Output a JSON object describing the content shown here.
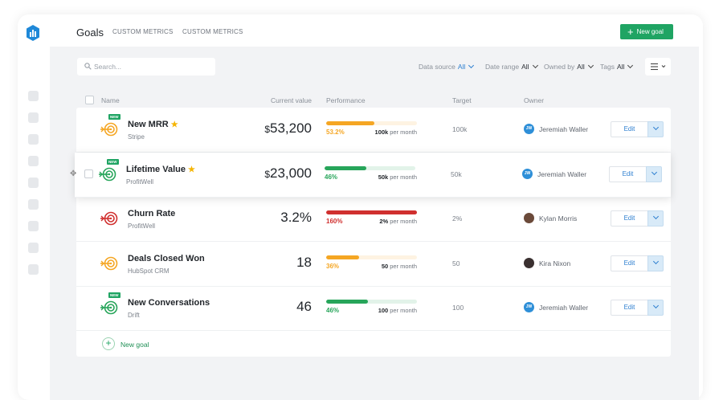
{
  "header": {
    "title": "Goals",
    "tabs": [
      "CUSTOM METRICS",
      "CUSTOM METRICS"
    ],
    "new_goal": "New goal"
  },
  "search": {
    "placeholder": "Search..."
  },
  "filters": [
    {
      "label": "Data source",
      "value": "All"
    },
    {
      "label": "Date range",
      "value": "All"
    },
    {
      "label": "Owned by",
      "value": "All"
    },
    {
      "label": "Tags",
      "value": "All"
    }
  ],
  "table": {
    "columns": [
      "Name",
      "Current value",
      "Performance",
      "Target",
      "Owner"
    ],
    "rows": [
      {
        "name": "New MRR",
        "starred": true,
        "badge": "NEW",
        "source": "Stripe",
        "prefix": "$",
        "value": "53,200",
        "performance": {
          "value": 53.2,
          "label": "53.2%"
        },
        "target_label": "100k",
        "target_unit": "per month",
        "target": "100k",
        "owner": "Jeremiah Waller",
        "initials": "JW",
        "color": "#f5a623",
        "hovered": false,
        "edit": "Edit"
      },
      {
        "name": "Lifetime Value",
        "starred": true,
        "badge": "NEW",
        "source": "ProfitWell",
        "prefix": "$",
        "value": "23,000",
        "performance": {
          "value": 46,
          "label": "46%"
        },
        "target_label": "50k",
        "target_unit": "per month",
        "target": "50k",
        "owner": "Jeremiah Waller",
        "initials": "JW",
        "color": "#27a55a",
        "hovered": true,
        "edit": "Edit"
      },
      {
        "name": "Churn Rate",
        "starred": false,
        "source": "ProfitWell",
        "value": "3.2%",
        "performance": {
          "value": 160,
          "label": "160%"
        },
        "target_label": "2%",
        "target_unit": "per month",
        "target": "2%",
        "owner": "Kylan Morris",
        "color": "#d0302f",
        "hovered": false,
        "edit": "Edit"
      },
      {
        "name": "Deals Closed Won",
        "starred": false,
        "source": "HubSpot CRM",
        "value": "18",
        "performance": {
          "value": 36,
          "label": "36%"
        },
        "target_label": "50",
        "target_unit": "per month",
        "target": "50",
        "owner": "Kira Nixon",
        "color": "#f5a623",
        "hovered": false,
        "edit": "Edit"
      },
      {
        "name": "New Conversations",
        "starred": false,
        "badge": "NEW",
        "source": "Drift",
        "value": "46",
        "performance": {
          "value": 46,
          "label": "46%"
        },
        "target_label": "100",
        "target_unit": "per month",
        "target": "100",
        "owner": "Jeremiah Waller",
        "initials": "JW",
        "color": "#27a55a",
        "hovered": false,
        "edit": "Edit"
      }
    ]
  },
  "add_goal": "New goal"
}
